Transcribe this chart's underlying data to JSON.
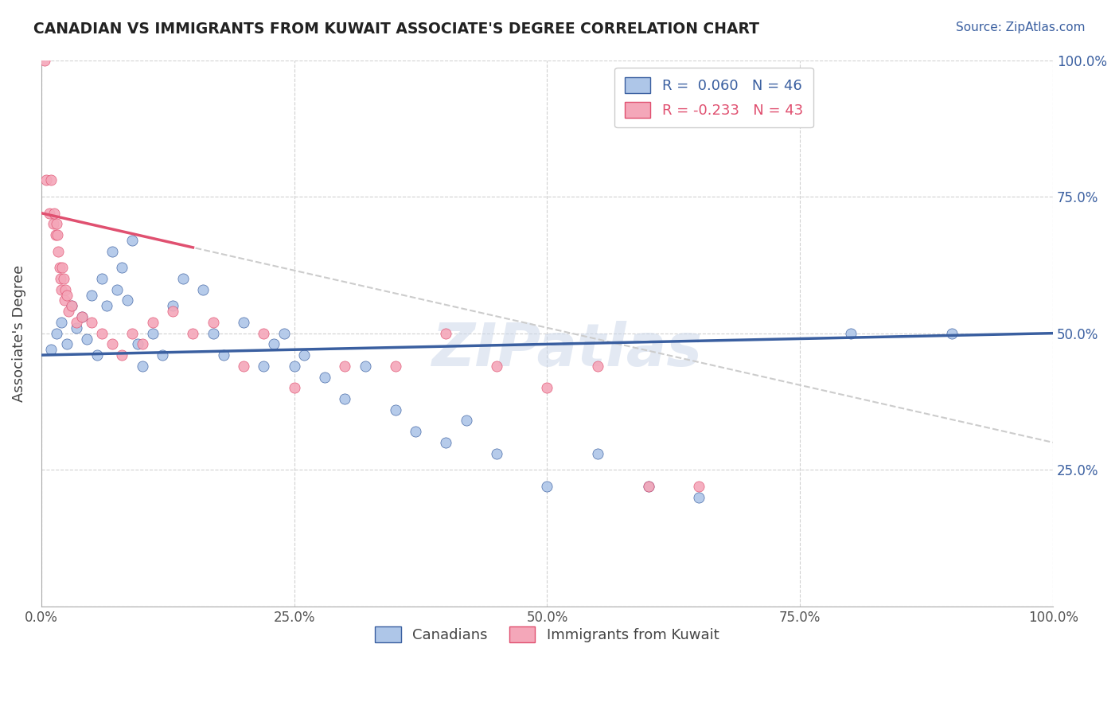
{
  "title": "CANADIAN VS IMMIGRANTS FROM KUWAIT ASSOCIATE'S DEGREE CORRELATION CHART",
  "source_text": "Source: ZipAtlas.com",
  "ylabel": "Associate's Degree",
  "x_tick_labels": [
    "0.0%",
    "25.0%",
    "50.0%",
    "75.0%",
    "100.0%"
  ],
  "y_tick_labels_right": [
    "25.0%",
    "50.0%",
    "75.0%",
    "100.0%"
  ],
  "xlim": [
    0.0,
    100.0
  ],
  "ylim": [
    0.0,
    100.0
  ],
  "canadian_color": "#aec6e8",
  "kuwait_color": "#f4a7b9",
  "trend_canadian_color": "#3a5fa0",
  "trend_kuwait_color": "#e05070",
  "trend_kuwait_dashed_color": "#cccccc",
  "R_canadian": 0.06,
  "N_canadian": 46,
  "R_kuwait": -0.233,
  "N_kuwait": 43,
  "legend_label_canadian": "Canadians",
  "legend_label_kuwait": "Immigrants from Kuwait",
  "watermark": "ZIPatlas",
  "canadians_x": [
    1.0,
    1.5,
    2.0,
    2.5,
    3.0,
    3.5,
    4.0,
    4.5,
    5.0,
    5.5,
    6.0,
    6.5,
    7.0,
    7.5,
    8.0,
    8.5,
    9.0,
    9.5,
    10.0,
    11.0,
    12.0,
    13.0,
    14.0,
    16.0,
    17.0,
    18.0,
    20.0,
    22.0,
    23.0,
    24.0,
    25.0,
    26.0,
    28.0,
    30.0,
    32.0,
    35.0,
    37.0,
    40.0,
    42.0,
    45.0,
    50.0,
    55.0,
    60.0,
    65.0,
    80.0,
    90.0
  ],
  "canadians_y": [
    47.0,
    50.0,
    52.0,
    48.0,
    55.0,
    51.0,
    53.0,
    49.0,
    57.0,
    46.0,
    60.0,
    55.0,
    65.0,
    58.0,
    62.0,
    56.0,
    67.0,
    48.0,
    44.0,
    50.0,
    46.0,
    55.0,
    60.0,
    58.0,
    50.0,
    46.0,
    52.0,
    44.0,
    48.0,
    50.0,
    44.0,
    46.0,
    42.0,
    38.0,
    44.0,
    36.0,
    32.0,
    30.0,
    34.0,
    28.0,
    22.0,
    28.0,
    22.0,
    20.0,
    50.0,
    50.0
  ],
  "kuwait_x": [
    0.3,
    0.5,
    0.8,
    1.0,
    1.2,
    1.3,
    1.4,
    1.5,
    1.6,
    1.7,
    1.8,
    1.9,
    2.0,
    2.1,
    2.2,
    2.3,
    2.4,
    2.5,
    2.7,
    3.0,
    3.5,
    4.0,
    5.0,
    6.0,
    7.0,
    8.0,
    9.0,
    10.0,
    11.0,
    13.0,
    15.0,
    17.0,
    20.0,
    22.0,
    25.0,
    30.0,
    35.0,
    40.0,
    45.0,
    50.0,
    55.0,
    60.0,
    65.0
  ],
  "kuwait_y": [
    100.0,
    78.0,
    72.0,
    78.0,
    70.0,
    72.0,
    68.0,
    70.0,
    68.0,
    65.0,
    62.0,
    60.0,
    58.0,
    62.0,
    60.0,
    56.0,
    58.0,
    57.0,
    54.0,
    55.0,
    52.0,
    53.0,
    52.0,
    50.0,
    48.0,
    46.0,
    50.0,
    48.0,
    52.0,
    54.0,
    50.0,
    52.0,
    44.0,
    50.0,
    40.0,
    44.0,
    44.0,
    50.0,
    44.0,
    40.0,
    44.0,
    22.0,
    22.0
  ],
  "trend_can_x0": 0.0,
  "trend_can_x1": 100.0,
  "trend_can_y0": 46.0,
  "trend_can_y1": 50.0,
  "trend_kuw_x0": 0.0,
  "trend_kuw_x1": 100.0,
  "trend_kuw_y0": 72.0,
  "trend_kuw_y1": 30.0,
  "trend_kuw_solid_end": 15.0
}
